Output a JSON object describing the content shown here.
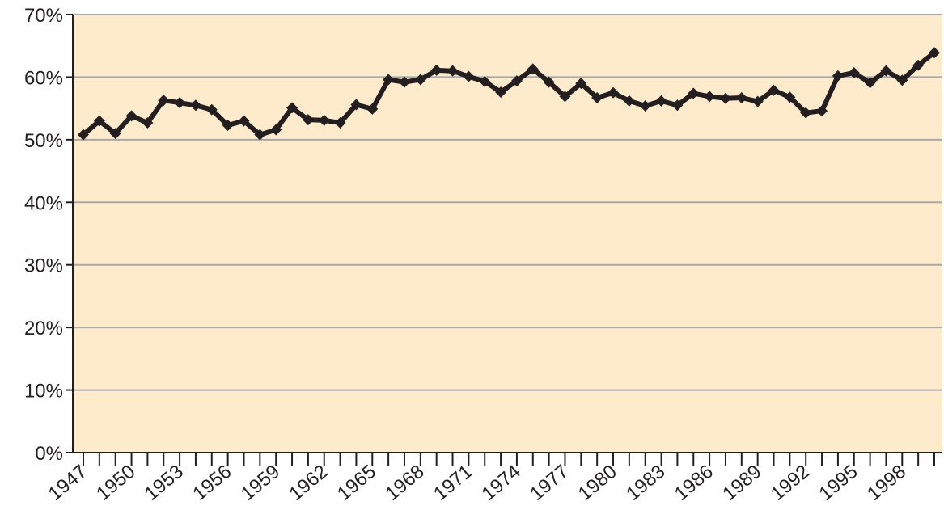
{
  "chart_data": {
    "type": "line",
    "title": "",
    "xlabel": "",
    "ylabel": "",
    "x": [
      1947,
      1948,
      1949,
      1950,
      1951,
      1952,
      1953,
      1954,
      1955,
      1956,
      1957,
      1958,
      1959,
      1960,
      1961,
      1962,
      1963,
      1964,
      1965,
      1966,
      1967,
      1968,
      1969,
      1970,
      1971,
      1972,
      1973,
      1974,
      1975,
      1976,
      1977,
      1978,
      1979,
      1980,
      1981,
      1982,
      1983,
      1984,
      1985,
      1986,
      1987,
      1988,
      1989,
      1990,
      1991,
      1992,
      1993,
      1994,
      1995,
      1996,
      1997,
      1998,
      1999,
      2000
    ],
    "series": [
      {
        "values": [
          50.8,
          53.0,
          51.0,
          53.8,
          52.7,
          56.3,
          55.9,
          55.5,
          54.8,
          52.3,
          53.0,
          50.8,
          51.6,
          55.1,
          53.2,
          53.1,
          52.7,
          55.6,
          54.9,
          59.6,
          59.2,
          59.6,
          61.1,
          61.0,
          60.1,
          59.3,
          57.6,
          59.4,
          61.3,
          59.2,
          56.9,
          59.0,
          56.7,
          57.5,
          56.2,
          55.4,
          56.2,
          55.5,
          57.4,
          56.9,
          56.6,
          56.7,
          56.1,
          57.9,
          56.8,
          54.3,
          54.6,
          60.2,
          60.7,
          59.1,
          61.0,
          59.5,
          61.9,
          63.9
        ]
      }
    ],
    "ylim": [
      0,
      70
    ],
    "yticks": [
      {
        "value": 0,
        "label": "0%"
      },
      {
        "value": 10,
        "label": "10%"
      },
      {
        "value": 20,
        "label": "20%"
      },
      {
        "value": 30,
        "label": "30%"
      },
      {
        "value": 40,
        "label": "40%"
      },
      {
        "value": 50,
        "label": "50%"
      },
      {
        "value": 60,
        "label": "60%"
      },
      {
        "value": 70,
        "label": "70%"
      }
    ],
    "xtick_labels": [
      {
        "value": 1947,
        "label": "1947"
      },
      {
        "value": 1950,
        "label": "1950"
      },
      {
        "value": 1953,
        "label": "1953"
      },
      {
        "value": 1956,
        "label": "1956"
      },
      {
        "value": 1959,
        "label": "1959"
      },
      {
        "value": 1962,
        "label": "1962"
      },
      {
        "value": 1965,
        "label": "1965"
      },
      {
        "value": 1968,
        "label": "1968"
      },
      {
        "value": 1971,
        "label": "1971"
      },
      {
        "value": 1974,
        "label": "1974"
      },
      {
        "value": 1977,
        "label": "1977"
      },
      {
        "value": 1980,
        "label": "1980"
      },
      {
        "value": 1983,
        "label": "1983"
      },
      {
        "value": 1986,
        "label": "1986"
      },
      {
        "value": 1989,
        "label": "1989"
      },
      {
        "value": 1992,
        "label": "1992"
      },
      {
        "value": 1995,
        "label": "1995"
      },
      {
        "value": 1998,
        "label": "1998"
      }
    ],
    "grid": "horizontal",
    "legend": "none",
    "colors": {
      "plot_background": "#fdebcb",
      "line": "#231f20",
      "gridline": "#a7a9ac",
      "axis": "#231f20"
    }
  }
}
